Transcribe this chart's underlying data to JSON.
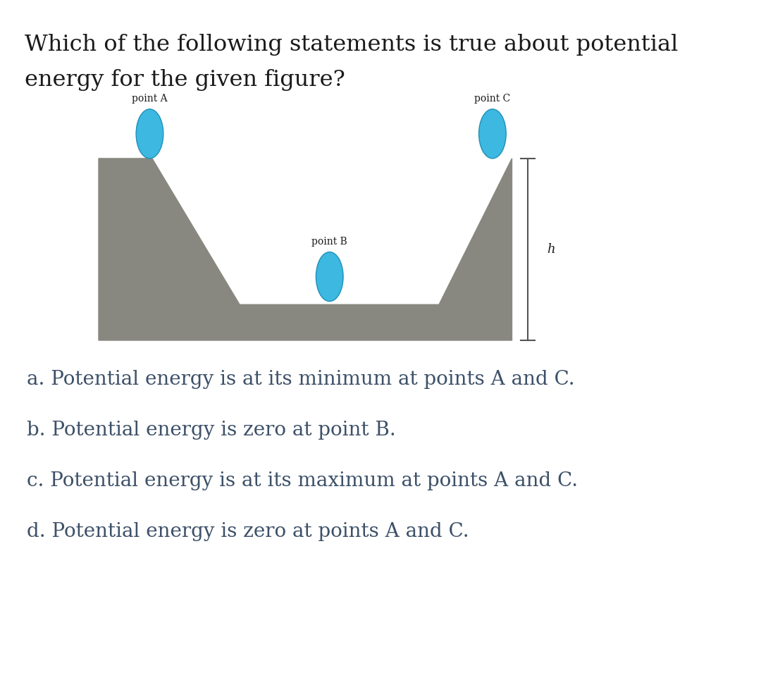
{
  "title_line1": "Which of the following statements is true about potential",
  "title_line2": "energy for the given figure?",
  "title_color": "#1a1a1a",
  "title_fontsize": 23,
  "bg_color": "#ffffff",
  "shape_color": "#888880",
  "ball_color": "#3db8e0",
  "ball_edge_color": "#2090b8",
  "answer_lines": [
    "a. Potential energy is at its minimum at points A and C.",
    "b. Potential energy is zero at point B.",
    "c. Potential energy is at its maximum at points A and C.",
    "d. Potential energy is zero at points A and C."
  ],
  "answer_color": "#3d5068",
  "answer_fontsize": 20,
  "label_fontsize": 10,
  "label_color": "#1a1a1a",
  "h_label": "h",
  "point_labels": [
    "point A",
    "point B",
    "point C"
  ],
  "shape_x": [
    0.0,
    0.0,
    1.1,
    2.9,
    7.0,
    8.5,
    8.5,
    0.0
  ],
  "shape_y": [
    0.0,
    2.8,
    2.8,
    0.55,
    0.55,
    2.8,
    0.0,
    0.0
  ],
  "ball_a": [
    1.05,
    3.18,
    0.28,
    0.38
  ],
  "ball_b": [
    4.75,
    0.98,
    0.28,
    0.38
  ],
  "ball_c": [
    8.1,
    3.18,
    0.28,
    0.38
  ]
}
